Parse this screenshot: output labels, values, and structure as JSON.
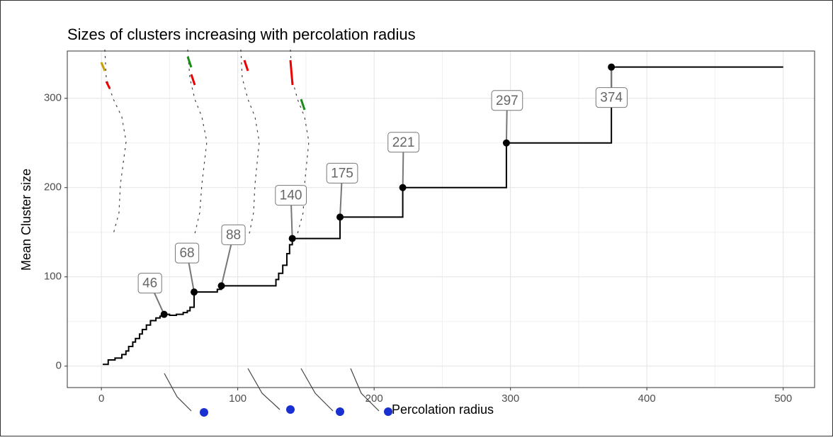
{
  "chart_data": {
    "type": "step",
    "title": "Sizes of clusters increasing with percolation radius",
    "x_label": "Percolation radius",
    "y_label": "Mean Cluster size",
    "color": "#000000",
    "x": [
      1,
      5,
      10,
      15,
      18,
      20,
      23,
      25,
      28,
      30,
      33,
      36,
      40,
      43,
      46,
      50,
      55,
      60,
      63,
      65,
      68,
      80,
      85,
      88,
      125,
      128,
      130,
      133,
      136,
      138,
      140,
      175,
      221,
      297,
      374,
      500
    ],
    "values": [
      2,
      7,
      9,
      13,
      17,
      22,
      27,
      31,
      36,
      41,
      46,
      51,
      54,
      56,
      58,
      57,
      58,
      60,
      62,
      66,
      83,
      83,
      86,
      90,
      90,
      97,
      104,
      113,
      126,
      136,
      143,
      167,
      200,
      250,
      335,
      335
    ],
    "points": {
      "x": [
        46,
        68,
        88,
        140,
        175,
        221,
        297,
        374
      ],
      "y": [
        58,
        83,
        90,
        143,
        167,
        200,
        250,
        335
      ]
    },
    "xlim": [
      -25,
      523
    ],
    "ylim": [
      -24,
      353
    ],
    "xticks": [
      0,
      100,
      200,
      300,
      400,
      500
    ],
    "yticks": [
      0,
      100,
      200,
      300
    ],
    "grid": true
  }
}
